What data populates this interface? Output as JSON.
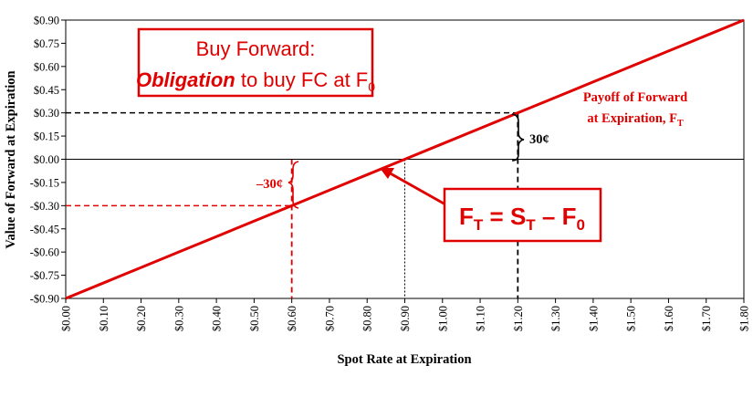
{
  "chart_data": {
    "type": "line",
    "x": [
      0.0,
      0.1,
      0.2,
      0.3,
      0.4,
      0.5,
      0.6,
      0.7,
      0.8,
      0.9,
      1.0,
      1.1,
      1.2,
      1.3,
      1.4,
      1.5,
      1.6,
      1.7,
      1.8
    ],
    "series": [
      {
        "values": [
          -0.9,
          -0.8,
          -0.7,
          -0.6,
          -0.5,
          -0.4,
          -0.3,
          -0.2,
          -0.1,
          0.0,
          0.1,
          0.2,
          0.3,
          0.4,
          0.5,
          0.6,
          0.7,
          0.8,
          0.9
        ],
        "color": "#e00000"
      }
    ],
    "xlim": [
      0.0,
      1.8
    ],
    "ylim": [
      -0.9,
      0.9
    ],
    "x_ticks": [
      0.0,
      0.1,
      0.2,
      0.3,
      0.4,
      0.5,
      0.6,
      0.7,
      0.8,
      0.9,
      1.0,
      1.1,
      1.2,
      1.3,
      1.4,
      1.5,
      1.6,
      1.7,
      1.8
    ],
    "x_tick_labels": [
      "$0.00",
      "$0.10",
      "$0.20",
      "$0.30",
      "$0.40",
      "$0.50",
      "$0.60",
      "$0.70",
      "$0.80",
      "$0.90",
      "$1.00",
      "$1.10",
      "$1.20",
      "$1.30",
      "$1.40",
      "$1.50",
      "$1.60",
      "$1.70",
      "$1.80"
    ],
    "y_ticks": [
      0.9,
      0.75,
      0.6,
      0.45,
      0.3,
      0.15,
      0.0,
      -0.15,
      -0.3,
      -0.45,
      -0.6,
      -0.75,
      -0.9
    ],
    "y_tick_labels": [
      "$0.90",
      "$0.75",
      "$0.60",
      "$0.45",
      "$0.30",
      "$0.15",
      "$0.00",
      "-$0.15",
      "-$0.30",
      "-$0.45",
      "-$0.60",
      "-$0.75",
      "-$0.90"
    ],
    "xlabel": "Spot Rate at Expiration",
    "ylabel": "Value of Forward at Expiration",
    "grid": false,
    "reference_points": [
      {
        "x": 1.2,
        "y": 0.3,
        "color": "#000000",
        "label": "30¢"
      },
      {
        "x": 0.6,
        "y": -0.3,
        "color": "#e00000",
        "label": "–30¢"
      },
      {
        "x": 0.9,
        "y": 0.0,
        "color": "#000000",
        "label": ""
      }
    ],
    "annotations": {
      "box_line1": "Buy Forward:",
      "box_line2_emph": "Obligation",
      "box_line2_rest": " to buy FC at F",
      "box_line2_sub": "0",
      "payoff_line1": "Payoff of Forward",
      "payoff_line2": "at Expiration, F",
      "payoff_line2_sub": "T",
      "formula_F": "F",
      "formula_T1": "T",
      "formula_eq": " = S",
      "formula_T2": "T",
      "formula_minus": " – F",
      "formula_0": "0"
    }
  }
}
